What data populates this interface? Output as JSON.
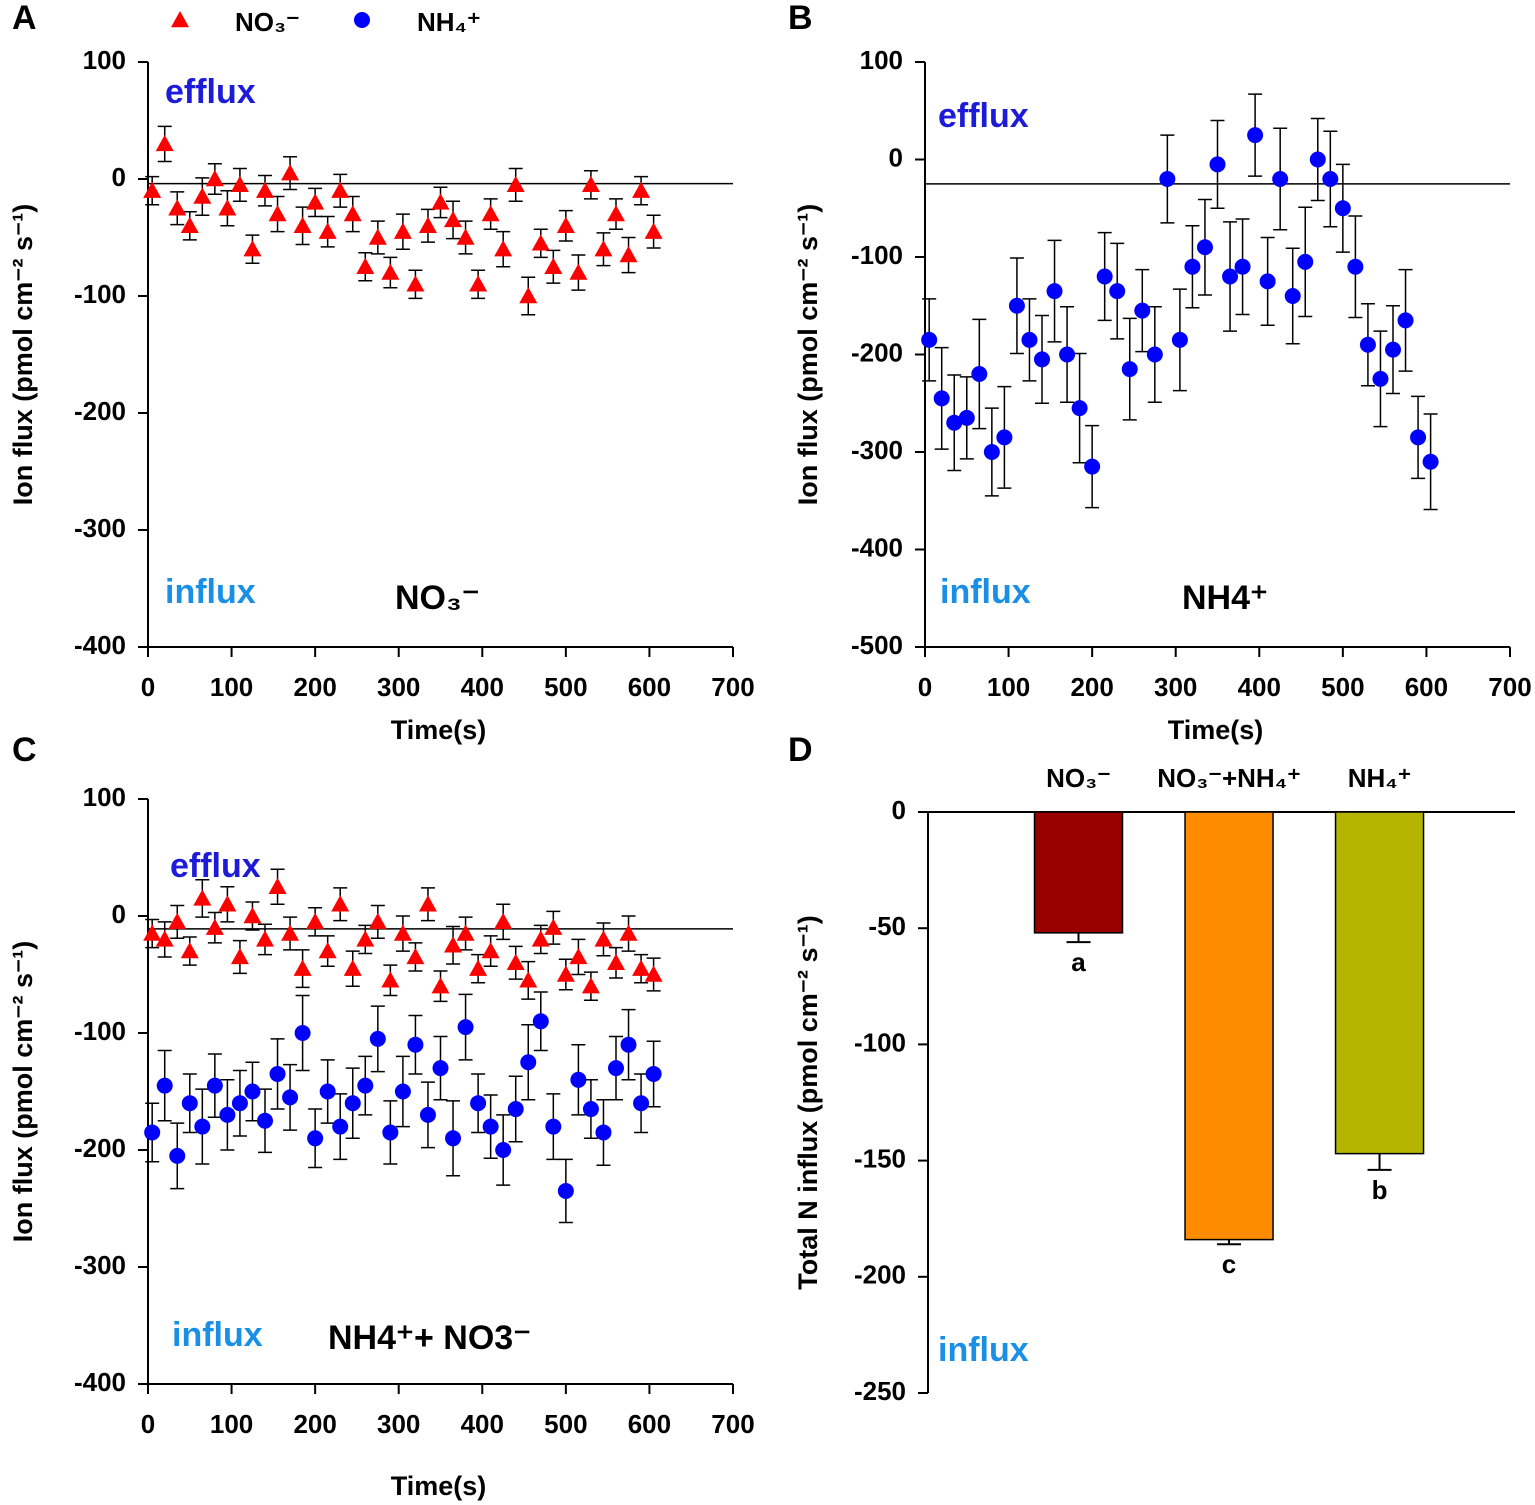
{
  "legend": [
    {
      "name": "NO₃⁻",
      "color": "#ff0000",
      "marker": "triangle"
    },
    {
      "name": "NH₄⁺",
      "color": "#0000ff",
      "marker": "circle"
    }
  ],
  "chart_data": [
    {
      "type": "scatter",
      "panel": "A",
      "xlabel": "Time(s)",
      "ylabel": "Ion flux (pmol cm⁻² s⁻¹)",
      "annotations": [
        "efflux",
        "influx",
        "NO₃⁻"
      ],
      "xlim": [
        0,
        700
      ],
      "xticks": [
        0,
        100,
        200,
        300,
        400,
        500,
        600,
        700
      ],
      "ylim": [
        -400,
        100
      ],
      "yticks": [
        -400,
        -300,
        -200,
        -100,
        0,
        100
      ],
      "ref_line": -4,
      "x": [
        5,
        20,
        35,
        50,
        65,
        80,
        95,
        110,
        125,
        140,
        155,
        170,
        185,
        200,
        215,
        230,
        245,
        260,
        275,
        290,
        305,
        320,
        335,
        350,
        365,
        380,
        395,
        410,
        425,
        440,
        455,
        470,
        485,
        500,
        515,
        530,
        545,
        560,
        575,
        590,
        605
      ],
      "series": [
        {
          "color": "#ff0000",
          "marker": "triangle",
          "values": [
            -10,
            30,
            -25,
            -40,
            -15,
            0,
            -25,
            -5,
            -60,
            -10,
            -30,
            5,
            -40,
            -20,
            -45,
            -10,
            -30,
            -75,
            -50,
            -80,
            -45,
            -90,
            -40,
            -20,
            -35,
            -50,
            -90,
            -30,
            -60,
            -5,
            -100,
            -55,
            -75,
            -40,
            -80,
            -5,
            -60,
            -30,
            -65,
            -10,
            -45
          ],
          "errors": [
            12,
            15,
            14,
            12,
            16,
            13,
            15,
            14,
            12,
            13,
            15,
            14,
            16,
            12,
            13,
            14,
            15,
            12,
            14,
            13,
            15,
            12,
            14,
            13,
            16,
            14,
            12,
            13,
            15,
            14,
            16,
            12,
            14,
            13,
            15,
            12,
            14,
            13,
            15,
            12,
            14
          ]
        }
      ]
    },
    {
      "type": "scatter",
      "panel": "B",
      "xlabel": "Time(s)",
      "ylabel": "Ion flux (pmol cm⁻² s⁻¹)",
      "annotations": [
        "efflux",
        "influx",
        "NH4⁺"
      ],
      "xlim": [
        0,
        700
      ],
      "xticks": [
        0,
        100,
        200,
        300,
        400,
        500,
        600,
        700
      ],
      "ylim": [
        -500,
        100
      ],
      "yticks": [
        -500,
        -400,
        -300,
        -200,
        -100,
        0,
        100
      ],
      "ref_line": -25,
      "x": [
        5,
        20,
        35,
        50,
        65,
        80,
        95,
        110,
        125,
        140,
        155,
        170,
        185,
        200,
        215,
        230,
        245,
        260,
        275,
        290,
        305,
        320,
        335,
        350,
        365,
        380,
        395,
        410,
        425,
        440,
        455,
        470,
        485,
        500,
        515,
        530,
        545,
        560,
        575,
        590,
        605
      ],
      "series": [
        {
          "color": "#0000ff",
          "marker": "circle",
          "values": [
            -185,
            -245,
            -270,
            -265,
            -220,
            -300,
            -285,
            -150,
            -185,
            -205,
            -135,
            -200,
            -255,
            -315,
            -120,
            -135,
            -215,
            -155,
            -200,
            -20,
            -185,
            -110,
            -90,
            -5,
            -120,
            -110,
            25,
            -125,
            -20,
            -140,
            -105,
            0,
            -20,
            -50,
            -110,
            -190,
            -225,
            -195,
            -165,
            -285,
            -310
          ],
          "errors": [
            42,
            52,
            49,
            42,
            56,
            45,
            52,
            49,
            42,
            45,
            52,
            49,
            56,
            42,
            45,
            49,
            52,
            42,
            49,
            45,
            52,
            42,
            49,
            45,
            56,
            49,
            42,
            45,
            52,
            49,
            56,
            42,
            49,
            45,
            52,
            42,
            49,
            45,
            52,
            42,
            49
          ]
        }
      ]
    },
    {
      "type": "scatter",
      "panel": "C",
      "xlabel": "Time(s)",
      "ylabel": "Ion flux (pmol cm⁻² s⁻¹)",
      "annotations": [
        "efflux",
        "influx",
        "NH4⁺+ NO3⁻"
      ],
      "xlim": [
        0,
        700
      ],
      "xticks": [
        0,
        100,
        200,
        300,
        400,
        500,
        600,
        700
      ],
      "ylim": [
        -400,
        100
      ],
      "yticks": [
        -400,
        -300,
        -200,
        -100,
        0,
        100
      ],
      "ref_line": -11,
      "x": [
        5,
        20,
        35,
        50,
        65,
        80,
        95,
        110,
        125,
        140,
        155,
        170,
        185,
        200,
        215,
        230,
        245,
        260,
        275,
        290,
        305,
        320,
        335,
        350,
        365,
        380,
        395,
        410,
        425,
        440,
        455,
        470,
        485,
        500,
        515,
        530,
        545,
        560,
        575,
        590,
        605
      ],
      "series": [
        {
          "color": "#ff0000",
          "marker": "triangle",
          "values": [
            -15,
            -20,
            -5,
            -30,
            15,
            -10,
            10,
            -35,
            0,
            -20,
            25,
            -15,
            -45,
            -5,
            -30,
            10,
            -45,
            -20,
            -5,
            -55,
            -15,
            -35,
            10,
            -60,
            -25,
            -15,
            -45,
            -30,
            -5,
            -40,
            -55,
            -20,
            -10,
            -50,
            -35,
            -60,
            -20,
            -40,
            -15,
            -45,
            -50
          ],
          "errors": [
            12,
            15,
            14,
            12,
            16,
            13,
            15,
            14,
            12,
            13,
            15,
            14,
            16,
            12,
            13,
            14,
            15,
            12,
            14,
            13,
            15,
            12,
            14,
            13,
            16,
            14,
            12,
            13,
            15,
            14,
            16,
            12,
            14,
            13,
            15,
            12,
            14,
            13,
            15,
            12,
            14
          ]
        },
        {
          "color": "#0000ff",
          "marker": "circle",
          "values": [
            -185,
            -145,
            -205,
            -160,
            -180,
            -145,
            -170,
            -160,
            -150,
            -175,
            -135,
            -155,
            -100,
            -190,
            -150,
            -180,
            -160,
            -145,
            -105,
            -185,
            -150,
            -110,
            -170,
            -130,
            -190,
            -95,
            -160,
            -180,
            -200,
            -165,
            -125,
            -90,
            -180,
            -235,
            -140,
            -165,
            -185,
            -130,
            -110,
            -160,
            -135
          ],
          "errors": [
            25,
            30,
            28,
            25,
            32,
            27,
            30,
            28,
            25,
            27,
            30,
            28,
            32,
            25,
            27,
            28,
            30,
            25,
            28,
            27,
            30,
            25,
            28,
            27,
            32,
            28,
            25,
            27,
            30,
            28,
            32,
            25,
            28,
            27,
            30,
            25,
            28,
            27,
            30,
            25,
            28
          ]
        }
      ]
    },
    {
      "type": "bar",
      "panel": "D",
      "ylabel": "Total N influx (pmol cm⁻² s⁻¹)",
      "annotations": [
        "influx"
      ],
      "categories": [
        "NO₃⁻",
        "NO₃⁻+NH₄⁺",
        "NH₄⁺"
      ],
      "values": [
        -52,
        -184,
        -147
      ],
      "errors": [
        4,
        2,
        7
      ],
      "letters": [
        "a",
        "c",
        "b"
      ],
      "colors": [
        "#990000",
        "#ff8c00",
        "#b5b500"
      ],
      "ylim": [
        -250,
        0
      ],
      "yticks": [
        -250,
        -200,
        -150,
        -100,
        -50,
        0
      ]
    }
  ]
}
